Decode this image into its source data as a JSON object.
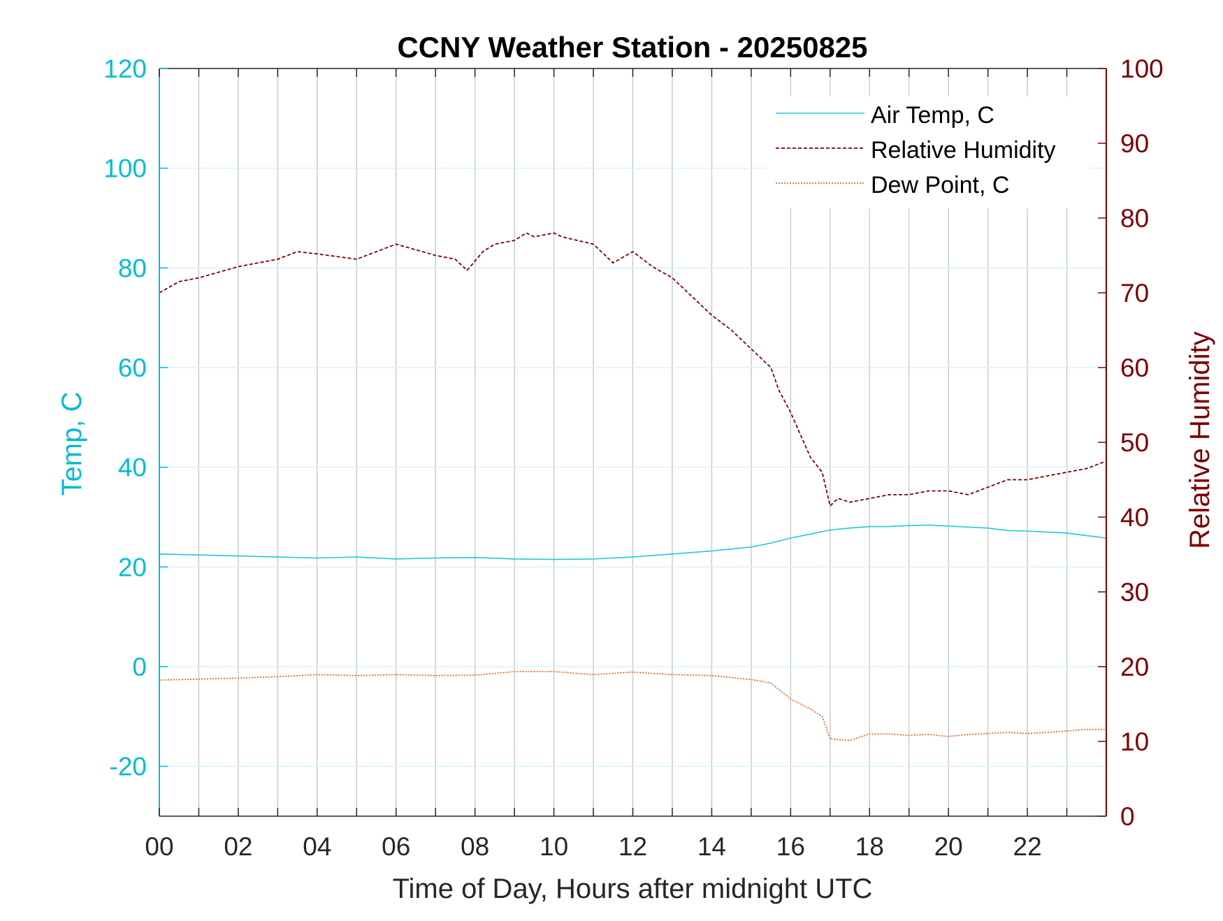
{
  "chart_data": {
    "type": "line",
    "title": "CCNY Weather Station - 20250825",
    "xlabel": "Time of Day, Hours after midnight UTC",
    "ylabel_left": "Temp, C",
    "ylabel_right": "Relative Humidity",
    "xlim": [
      0,
      24
    ],
    "ylim_left": [
      -30,
      120
    ],
    "ylim_right": [
      0,
      100
    ],
    "x_ticks": [
      0,
      2,
      4,
      6,
      8,
      10,
      12,
      14,
      16,
      18,
      20,
      22
    ],
    "x_tick_labels": [
      "00",
      "02",
      "04",
      "06",
      "08",
      "10",
      "12",
      "14",
      "16",
      "18",
      "20",
      "22"
    ],
    "y_left_ticks": [
      -20,
      0,
      20,
      40,
      60,
      80,
      100,
      120
    ],
    "y_left_tick_labels": [
      "-20",
      "0",
      "20",
      "40",
      "60",
      "80",
      "100",
      "120"
    ],
    "y_right_ticks": [
      0,
      10,
      20,
      30,
      40,
      50,
      60,
      70,
      80,
      90,
      100
    ],
    "y_right_tick_labels": [
      "0",
      "10",
      "20",
      "30",
      "40",
      "50",
      "60",
      "70",
      "80",
      "90",
      "100"
    ],
    "grid": true,
    "legend_position": "top-right",
    "colors": {
      "left_axis": "#00bcd4",
      "right_axis": "#7a0000",
      "air_temp": "#1ec8dd",
      "humidity": "#7a0000",
      "dew_point": "#e36a33",
      "vertical_grid": "#c8ccd0",
      "horizontal_grid": "#d6f3f8"
    },
    "series": [
      {
        "name": "Air Temp, C",
        "axis": "left",
        "style": "solid",
        "x": [
          0,
          1,
          2,
          3,
          4,
          5,
          6,
          7,
          8,
          9,
          10,
          11,
          12,
          13,
          14,
          15,
          15.5,
          16,
          16.5,
          17,
          17.5,
          18,
          18.5,
          19,
          19.5,
          20,
          20.5,
          21,
          21.5,
          22,
          22.5,
          23,
          23.5,
          24
        ],
        "y": [
          22.6,
          22.4,
          22.2,
          22.0,
          21.8,
          22.0,
          21.6,
          21.8,
          21.9,
          21.6,
          21.5,
          21.6,
          22.0,
          22.6,
          23.2,
          24.0,
          24.8,
          25.8,
          26.6,
          27.4,
          27.8,
          28.1,
          28.1,
          28.3,
          28.4,
          28.2,
          28.0,
          27.8,
          27.3,
          27.2,
          27.0,
          26.8,
          26.3,
          25.8
        ]
      },
      {
        "name": "Relative Humidity",
        "axis": "right",
        "style": "dashed",
        "x": [
          0,
          0.5,
          1,
          2,
          3,
          3.5,
          4,
          5,
          6,
          7,
          7.5,
          7.8,
          8.2,
          8.5,
          9,
          9.3,
          9.5,
          10,
          10.2,
          11,
          11.5,
          12,
          12.5,
          13,
          14,
          14.5,
          15,
          15.5,
          15.7,
          16,
          16.5,
          16.8,
          17,
          17.2,
          17.5,
          18,
          18.5,
          19,
          19.5,
          20,
          20.5,
          21,
          21.5,
          22,
          22.5,
          23,
          23.5,
          24
        ],
        "y": [
          70,
          71.5,
          72,
          73.5,
          74.5,
          75.5,
          75.2,
          74.5,
          76.5,
          75,
          74.5,
          73,
          75.5,
          76.5,
          77,
          78,
          77.5,
          78,
          77.5,
          76.5,
          74,
          75.5,
          73.5,
          72,
          67,
          65,
          62.5,
          60,
          57,
          54,
          48,
          46,
          41.5,
          42.5,
          42,
          42.5,
          43,
          43,
          43.5,
          43.5,
          43,
          44,
          45,
          45,
          45.5,
          46,
          46.5,
          47.5
        ]
      },
      {
        "name": "Dew Point, C",
        "axis": "left",
        "style": "dotted",
        "x": [
          0,
          1,
          2,
          3,
          4,
          5,
          6,
          7,
          8,
          9,
          10,
          11,
          12,
          13,
          14,
          15,
          15.5,
          16,
          16.5,
          16.8,
          17,
          17.5,
          18,
          18.5,
          19,
          19.5,
          20,
          20.5,
          21,
          21.5,
          22,
          22.5,
          23,
          23.5,
          24
        ],
        "y": [
          -2.7,
          -2.5,
          -2.3,
          -2.0,
          -1.6,
          -1.8,
          -1.6,
          -1.8,
          -1.7,
          -1.0,
          -1.0,
          -1.6,
          -1.1,
          -1.6,
          -1.8,
          -2.6,
          -3.3,
          -6.5,
          -8.5,
          -10,
          -14.5,
          -14.8,
          -13.5,
          -13.5,
          -13.8,
          -13.6,
          -14.0,
          -13.6,
          -13.4,
          -13.2,
          -13.4,
          -13.2,
          -12.9,
          -12.6,
          -12.6
        ]
      }
    ]
  }
}
